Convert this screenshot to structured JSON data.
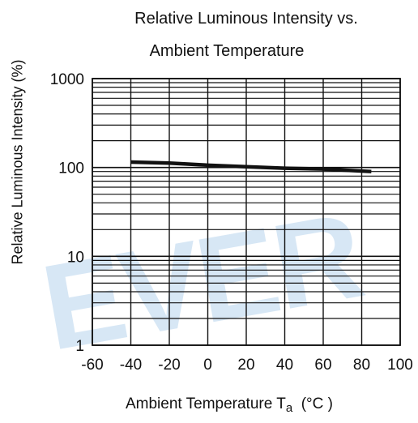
{
  "chart_data": {
    "type": "line",
    "title_lines": [
      "Relative Luminous Intensity vs.",
      "Ambient Temperature"
    ],
    "xlabel": "Ambient Temperature T",
    "xlabel_subscript": "a",
    "xlabel_unit": "(°C )",
    "ylabel": "Relative Luminous Intensity  (%)",
    "x_ticks": [
      "-60",
      "-40",
      "-20",
      "0",
      "20",
      "40",
      "60",
      "80",
      "100"
    ],
    "y_ticks": [
      "1000",
      "100",
      "10",
      "1"
    ],
    "xlim": [
      -60,
      100
    ],
    "ylim": [
      1,
      1000
    ],
    "y_scale": "log",
    "grid": true,
    "x": [
      -40,
      -20,
      0,
      20,
      40,
      60,
      85
    ],
    "series": [
      {
        "values": [
          115,
          112,
          106,
          102,
          98,
          96,
          90
        ]
      }
    ],
    "watermark": "EVER",
    "colors": {
      "line": "#111111",
      "grid": "#111111",
      "watermark": "#cfe3f4"
    }
  }
}
